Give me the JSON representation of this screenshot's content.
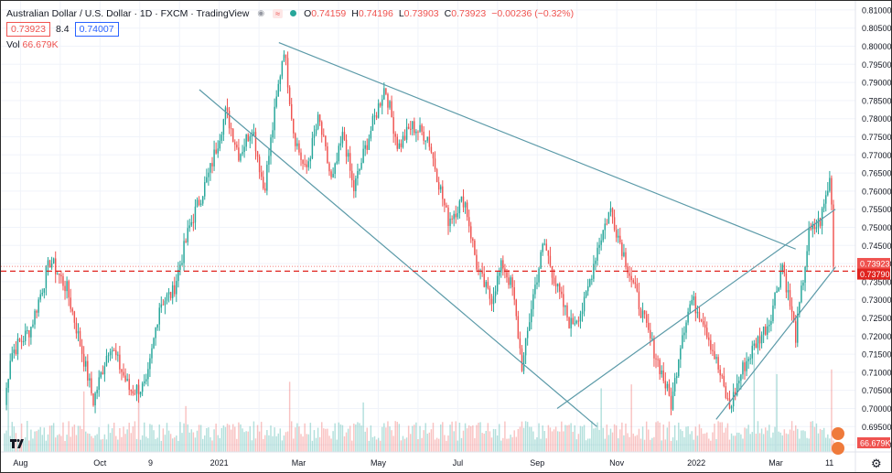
{
  "header": {
    "symbol_title": "Australian Dollar / U.S. Dollar · 1D · FXCM · TradingView",
    "open_label": "O",
    "open": "0.74159",
    "high_label": "H",
    "high": "0.74196",
    "low_label": "L",
    "low": "0.73903",
    "close_label": "C",
    "close": "0.73923",
    "change": "−0.00236 (−0.32%)",
    "bid": "0.73923",
    "spread": "8.4",
    "ask": "0.74007",
    "vol_label": "Vol",
    "vol_value": "66.679K"
  },
  "colors": {
    "up": "#26a69a",
    "down": "#ef5350",
    "trendline": "#5b9aa8",
    "price_line": "#e0241f",
    "grid": "#f0f3fa",
    "bg": "#ffffff"
  },
  "icons": [
    "eye-icon",
    "dot-icon",
    "tradingview-logo-icon",
    "gear-icon"
  ],
  "chart_data": {
    "type": "candlestick",
    "y_axis": {
      "min": 0.688,
      "max": 0.8125,
      "ticks": [
        "0.81000",
        "0.80500",
        "0.80000",
        "0.79500",
        "0.79000",
        "0.78500",
        "0.78000",
        "0.77500",
        "0.77000",
        "0.76500",
        "0.76000",
        "0.75500",
        "0.75000",
        "0.74500",
        "0.74000",
        "0.73500",
        "0.73000",
        "0.72500",
        "0.72000",
        "0.71500",
        "0.71000",
        "0.70500",
        "0.70000",
        "0.69500",
        "0.69000"
      ],
      "position": "right"
    },
    "x_axis": {
      "labels": [
        "Aug",
        "Oct",
        "9",
        "2021",
        "Mar",
        "May",
        "Jul",
        "Sep",
        "Nov",
        "2022",
        "Mar",
        "11"
      ]
    },
    "price_labels": {
      "last": "0.73923",
      "horizontal_level": "0.73790",
      "volume": "66.679K"
    },
    "horizontal_line": 0.7379,
    "last_price": 0.73923,
    "grid": true,
    "path_points": [
      [
        "Jul 2020",
        0.701
      ],
      [
        "Jul 2020",
        0.715
      ],
      [
        "Aug 2020",
        0.722
      ],
      [
        "Aug 2020",
        0.741
      ],
      [
        "Sep 2020",
        0.733
      ],
      [
        "Sep 2020",
        0.718
      ],
      [
        "Sep 2020",
        0.702
      ],
      [
        "Oct 2020",
        0.718
      ],
      [
        "Oct 2020",
        0.705
      ],
      [
        "Nov 2020",
        0.706
      ],
      [
        "Nov 2020",
        0.729
      ],
      [
        "Nov 2020",
        0.732
      ],
      [
        "Dec 2020",
        0.75
      ],
      [
        "Dec 2020",
        0.765
      ],
      [
        "Jan 2021",
        0.782
      ],
      [
        "Jan 2021",
        0.77
      ],
      [
        "Jan 2021",
        0.778
      ],
      [
        "Feb 2021",
        0.76
      ],
      [
        "Feb 2021",
        0.78
      ],
      [
        "Feb 2021",
        0.8
      ],
      [
        "Feb 2021",
        0.776
      ],
      [
        "Mar 2021",
        0.765
      ],
      [
        "Mar 2021",
        0.78
      ],
      [
        "Mar 2021",
        0.762
      ],
      [
        "Apr 2021",
        0.776
      ],
      [
        "Apr 2021",
        0.76
      ],
      [
        "Apr 2021",
        0.77
      ],
      [
        "Apr 2021",
        0.779
      ],
      [
        "May 2021",
        0.789
      ],
      [
        "May 2021",
        0.772
      ],
      [
        "May 2021",
        0.778
      ],
      [
        "Jun 2021",
        0.775
      ],
      [
        "Jun 2021",
        0.752
      ],
      [
        "Jul 2021",
        0.758
      ],
      [
        "Jul 2021",
        0.738
      ],
      [
        "Jul 2021",
        0.73
      ],
      [
        "Aug 2021",
        0.74
      ],
      [
        "Aug 2021",
        0.733
      ],
      [
        "Aug 2021",
        0.711
      ],
      [
        "Aug 2021",
        0.73
      ],
      [
        "Sep 2021",
        0.746
      ],
      [
        "Sep 2021",
        0.733
      ],
      [
        "Sep 2021",
        0.723
      ],
      [
        "Oct 2021",
        0.728
      ],
      [
        "Oct 2021",
        0.744
      ],
      [
        "Oct 2021",
        0.755
      ],
      [
        "Nov 2021",
        0.74
      ],
      [
        "Nov 2021",
        0.722
      ],
      [
        "Dec 2021",
        0.71
      ],
      [
        "Dec 2021",
        0.701
      ],
      [
        "Dec 2021",
        0.72
      ],
      [
        "Dec 2021",
        0.73
      ],
      [
        "Jan 2022",
        0.725
      ],
      [
        "Jan 2022",
        0.713
      ],
      [
        "Jan 2022",
        0.7
      ],
      [
        "Feb 2022",
        0.711
      ],
      [
        "Feb 2022",
        0.718
      ],
      [
        "Feb 2022",
        0.724
      ],
      [
        "Mar 2022",
        0.74
      ],
      [
        "Mar 2022",
        0.72
      ],
      [
        "Mar 2022",
        0.748
      ],
      [
        "Apr 2022",
        0.752
      ],
      [
        "Apr 2022",
        0.764
      ],
      [
        "Apr 2022",
        0.748
      ],
      [
        "Apr 2022",
        0.7392
      ]
    ],
    "trendlines": [
      {
        "from": [
          "Feb 2021",
          0.801
        ],
        "to": [
          "Mar 2022",
          0.744
        ]
      },
      {
        "from": [
          "Dec 2020",
          0.788
        ],
        "to": [
          "Oct 2021",
          0.695
        ]
      },
      {
        "from": [
          "Sep 2021",
          0.7
        ],
        "to": [
          "Apr 2022",
          0.755
        ]
      },
      {
        "from": [
          "Jan 2022",
          0.697
        ],
        "to": [
          "Apr 2022",
          0.739
        ]
      }
    ]
  }
}
